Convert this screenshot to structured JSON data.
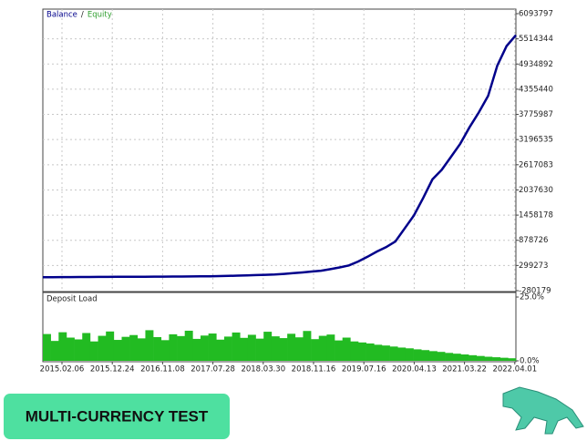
{
  "chart_data": [
    {
      "type": "line",
      "series": [
        {
          "name": "Balance",
          "color": "#00008b",
          "values": [
            30000,
            31000,
            32000,
            33000,
            34000,
            35000,
            36000,
            37000,
            38000,
            39000,
            40000,
            41000,
            42000,
            43000,
            44000,
            45000,
            46000,
            48000,
            50000,
            55000,
            60000,
            66000,
            72000,
            78000,
            84000,
            90000,
            105000,
            122000,
            140000,
            160000,
            180000,
            215000,
            255000,
            300000,
            390000,
            500000,
            620000,
            720000,
            850000,
            1150000,
            1450000,
            1850000,
            2280000,
            2500000,
            2800000,
            3100000,
            3480000,
            3820000,
            4200000,
            4900000,
            5350000,
            5600000
          ]
        },
        {
          "name": "Equity",
          "color": "#2e9e2e",
          "values": [
            30000,
            31000,
            32000,
            33000,
            34000,
            35000,
            36000,
            37000,
            38000,
            39000,
            40000,
            41000,
            42000,
            43000,
            44000,
            45000,
            46000,
            48000,
            50000,
            55000,
            60000,
            66000,
            72000,
            78000,
            84000,
            90000,
            105000,
            122000,
            140000,
            160000,
            180000,
            215000,
            255000,
            300000,
            390000,
            500000,
            620000,
            720000,
            850000,
            1150000,
            1450000,
            1850000,
            2280000,
            2500000,
            2800000,
            3100000,
            3480000,
            3820000,
            4200000,
            4900000,
            5350000,
            5600000
          ]
        }
      ],
      "ylim": [
        -280179,
        6093797
      ],
      "yticks": [
        -280179,
        299273,
        878726,
        1458178,
        2037630,
        2617083,
        3196535,
        3775987,
        4355440,
        4934892,
        5514344,
        6093797
      ],
      "grid": true,
      "legend": "top-left"
    },
    {
      "type": "bar",
      "title": "Deposit Load",
      "color": "#22bb22",
      "values": [
        10.5,
        7.8,
        11.2,
        9.1,
        8.4,
        10.9,
        7.6,
        9.8,
        11.5,
        8.2,
        9.4,
        10.1,
        8.8,
        12.0,
        9.3,
        8.1,
        10.4,
        9.7,
        11.8,
        8.6,
        9.9,
        10.7,
        8.3,
        9.5,
        11.1,
        9.0,
        10.2,
        8.7,
        11.4,
        9.6,
        8.9,
        10.6,
        9.2,
        11.7,
        8.5,
        9.8,
        10.3,
        8.0,
        9.1,
        7.6,
        7.2,
        6.8,
        6.3,
        6.0,
        5.6,
        5.2,
        4.9,
        4.5,
        4.2,
        3.8,
        3.5,
        3.1,
        2.8,
        2.5,
        2.2,
        1.9,
        1.6,
        1.4,
        1.2,
        1.0
      ],
      "ylim": [
        0,
        25
      ],
      "yticks": [
        {
          "value": 0,
          "label": "0.0%"
        },
        {
          "value": 25,
          "label": "25.0%"
        }
      ],
      "xticklabels": [
        "2015.02.06",
        "2015.12.24",
        "2016.11.08",
        "2017.07.28",
        "2018.03.30",
        "2018.11.16",
        "2019.07.16",
        "2020.04.13",
        "2021.03.22",
        "2022.04.01"
      ]
    }
  ],
  "badge": {
    "text": "MULTI-CURRENCY TEST"
  }
}
